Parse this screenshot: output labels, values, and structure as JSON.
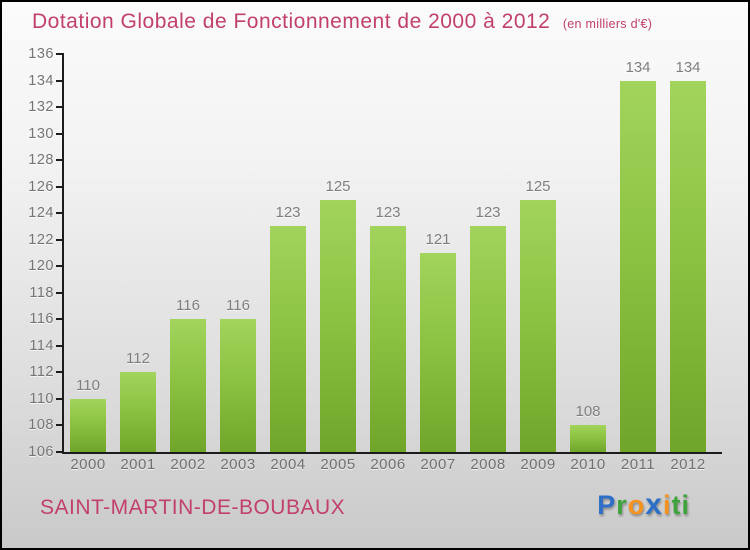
{
  "header": {
    "title": "Dotation Globale de Fonctionnement de 2000 à 2012",
    "subtitle": "(en milliers d'€)"
  },
  "chart_data": {
    "type": "bar",
    "title": "Dotation Globale de Fonctionnement de 2000 à 2012",
    "units_label": "(en milliers d'€)",
    "categories": [
      "2000",
      "2001",
      "2002",
      "2003",
      "2004",
      "2005",
      "2006",
      "2007",
      "2008",
      "2009",
      "2010",
      "2011",
      "2012"
    ],
    "values": [
      110,
      112,
      116,
      116,
      123,
      125,
      123,
      121,
      123,
      125,
      108,
      134,
      134
    ],
    "ylim": [
      106,
      136
    ],
    "ytick_step": 2,
    "grid": false,
    "legend": false,
    "value_labels_shown": true,
    "colors": {
      "bar_top": "#a2d45c",
      "bar_bottom": "#6fa62a",
      "axis": "#1c1c1c",
      "tick_label": "#757575",
      "value_label": "#7f7f7f"
    }
  },
  "footer": {
    "place_name": "SAINT-MARTIN-DE-BOUBAUX",
    "logo": {
      "text": "Proxiti",
      "letters": [
        {
          "ch": "P",
          "color": "#2d6fc7"
        },
        {
          "ch": "r",
          "color": "#3fa33c"
        },
        {
          "ch": "o",
          "color": "#f6921e"
        },
        {
          "ch": "x",
          "color": "#2d6fc7"
        },
        {
          "ch": "i",
          "color": "#f6921e"
        },
        {
          "ch": "t",
          "color": "#3fa33c"
        },
        {
          "ch": "i",
          "color": "#3fa33c"
        }
      ]
    }
  },
  "colors": {
    "title": "#c2406c",
    "background_top": "#fbfbfb",
    "background_bottom": "#c9c9c9"
  }
}
